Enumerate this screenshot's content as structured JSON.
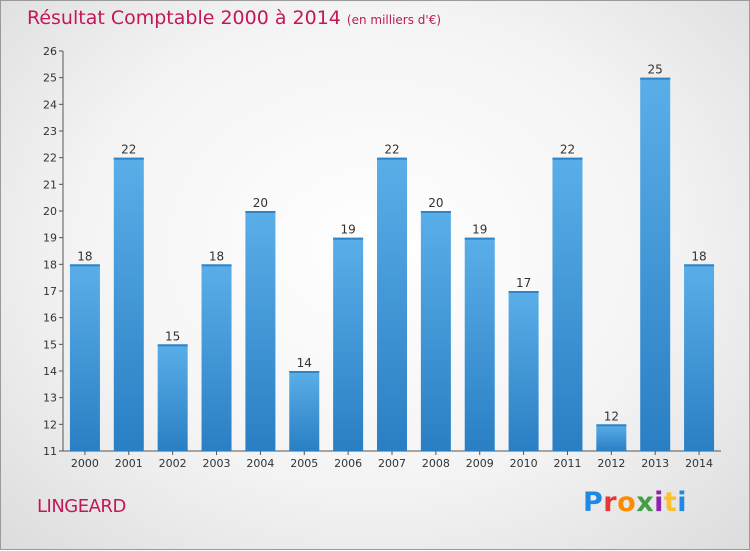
{
  "title": {
    "main": "Résultat Comptable 2000 à 2014",
    "sub": "(en milliers d'€)"
  },
  "commune": "LINGEARD",
  "brand": {
    "letters": [
      "P",
      "r",
      "o",
      "x",
      "i",
      "t",
      "i"
    ],
    "colors": [
      "#1e88e5",
      "#e53935",
      "#fb8c00",
      "#43a047",
      "#8e24aa",
      "#fbc02d",
      "#1e88e5"
    ]
  },
  "chart_data": {
    "type": "bar",
    "title": "Résultat Comptable 2000 à 2014",
    "subtitle": "(en milliers d'€)",
    "xlabel": "",
    "ylabel": "",
    "categories": [
      "2000",
      "2001",
      "2002",
      "2003",
      "2004",
      "2005",
      "2006",
      "2007",
      "2008",
      "2009",
      "2010",
      "2011",
      "2012",
      "2013",
      "2014"
    ],
    "values": [
      18,
      22,
      15,
      18,
      20,
      14,
      19,
      22,
      20,
      19,
      17,
      22,
      12,
      25,
      18
    ],
    "ylim": [
      11,
      26
    ],
    "yticks": [
      11,
      12,
      13,
      14,
      15,
      16,
      17,
      18,
      19,
      20,
      21,
      22,
      23,
      24,
      25,
      26
    ],
    "grid": false,
    "legend": "none",
    "bar_color": "#4a9fdf"
  }
}
